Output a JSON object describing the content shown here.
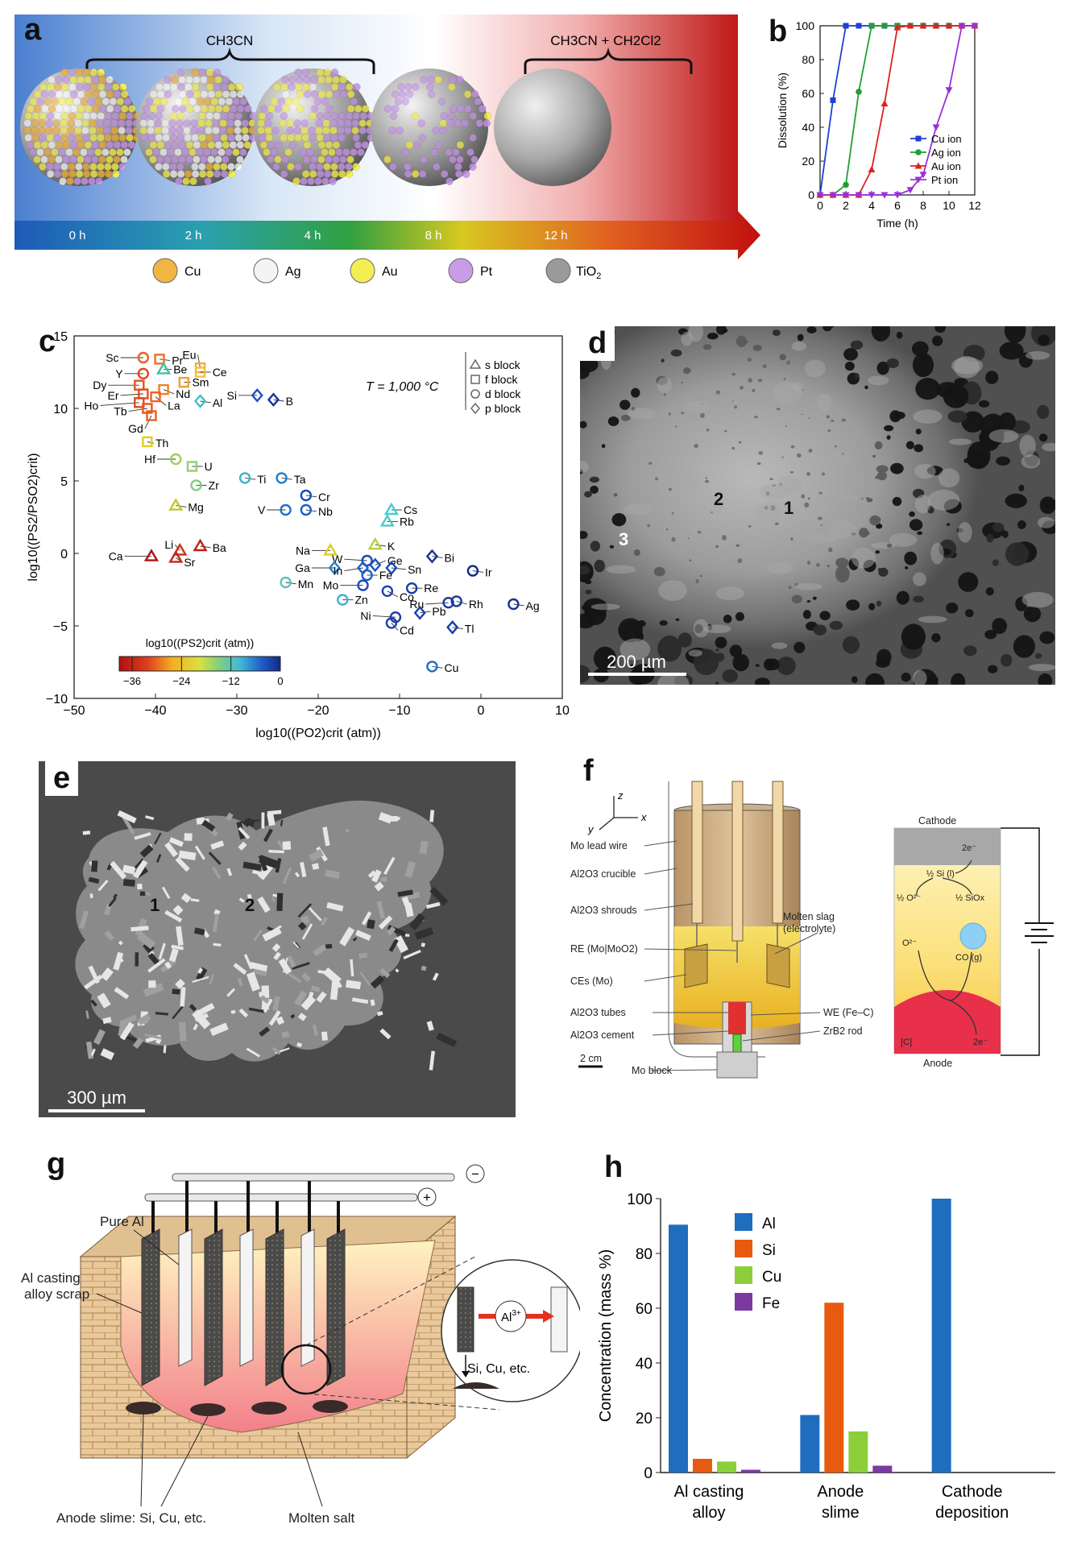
{
  "panels": {
    "a": {
      "label": "a",
      "solvent_left": "CH3CN",
      "solvent_right": "CH3CN + CH2Cl2",
      "times": [
        "0 h",
        "2 h",
        "4 h",
        "8 h",
        "12 h"
      ],
      "legend": [
        {
          "name": "Cu",
          "color": "#f2b443"
        },
        {
          "name": "Ag",
          "color": "#f4f4f4"
        },
        {
          "name": "Au",
          "color": "#f4ee55"
        },
        {
          "name": "Pt",
          "color": "#c99ce8"
        },
        {
          "name": "TiO2",
          "color": "#9a9a9a"
        }
      ]
    },
    "b": {
      "label": "b"
    },
    "c": {
      "label": "c",
      "temperature": "T = 1,000 °C",
      "legend": [
        "s block",
        "f block",
        "d block",
        "p block"
      ],
      "colorbar_title": "log10((PS2)crit (atm))",
      "colorbar_ticks": [
        "−36",
        "−24",
        "−12",
        "0"
      ]
    },
    "d": {
      "label": "d",
      "regions": [
        "1",
        "2",
        "3"
      ],
      "scalebar": "200 µm"
    },
    "e": {
      "label": "e",
      "regions": [
        "1",
        "2"
      ],
      "scalebar": "300 µm"
    },
    "f": {
      "label": "f",
      "axes": [
        "z",
        "x",
        "y"
      ],
      "callouts_left": [
        "Mo lead wire",
        "Al2O3 crucible",
        "Al2O3 shrouds",
        "RE (Mo|MoO2)",
        "CEs (Mo)",
        "Al2O3 tubes",
        "Al2O3 cement"
      ],
      "callouts_right": [
        "Molten slag",
        "(electrolyte)",
        "WE (Fe–C)",
        "ZrB2 rod"
      ],
      "bottom": [
        "2 cm",
        "Mo block"
      ],
      "schematic": {
        "cathode": "Cathode",
        "anode": "Anode",
        "e_top": "2e⁻",
        "si": "½ Si (l)",
        "o": "½ O²⁻",
        "siox": "½ SiOx",
        "o2": "O²⁻",
        "co": "CO (g)",
        "c": "[C]",
        "e_bottom": "2e⁻"
      }
    },
    "g": {
      "label": "g",
      "labels": [
        "Pure Al",
        "Al casting",
        "alloy scrap",
        "Anode slime: Si, Cu, etc.",
        "Molten salt",
        "Si, Cu, etc."
      ],
      "ion": "Al",
      "ion_charge": "3+",
      "minus": "−",
      "plus": "+"
    },
    "h": {
      "label": "h"
    }
  },
  "chart_data": [
    {
      "id": "b",
      "type": "line",
      "xlabel": "Time (h)",
      "ylabel": "Dissolution (%)",
      "xlim": [
        0,
        12
      ],
      "ylim": [
        0,
        100
      ],
      "xticks": [
        0,
        2,
        4,
        6,
        8,
        10,
        12
      ],
      "yticks": [
        0,
        20,
        40,
        60,
        80,
        100
      ],
      "legend_position": "lower-right",
      "series": [
        {
          "name": "Cu ion",
          "color": "#1f3fd6",
          "marker": "square",
          "points": [
            [
              0,
              0
            ],
            [
              1,
              56
            ],
            [
              2,
              100
            ],
            [
              3,
              100
            ],
            [
              4,
              100
            ],
            [
              5,
              100
            ],
            [
              6,
              100
            ],
            [
              7,
              100
            ],
            [
              8,
              100
            ],
            [
              9,
              100
            ],
            [
              10,
              100
            ],
            [
              11,
              100
            ],
            [
              12,
              100
            ]
          ]
        },
        {
          "name": "Ag ion",
          "color": "#20a030",
          "marker": "circle",
          "points": [
            [
              0,
              0
            ],
            [
              1,
              0
            ],
            [
              2,
              6
            ],
            [
              3,
              61
            ],
            [
              4,
              100
            ],
            [
              5,
              100
            ],
            [
              6,
              100
            ],
            [
              7,
              100
            ],
            [
              8,
              100
            ],
            [
              9,
              100
            ],
            [
              10,
              100
            ],
            [
              11,
              100
            ],
            [
              12,
              100
            ]
          ]
        },
        {
          "name": "Au ion",
          "color": "#e02020",
          "marker": "triangle",
          "points": [
            [
              0,
              0
            ],
            [
              1,
              0
            ],
            [
              2,
              0
            ],
            [
              3,
              0
            ],
            [
              4,
              15
            ],
            [
              5,
              54
            ],
            [
              6,
              99
            ],
            [
              7,
              100
            ],
            [
              8,
              100
            ],
            [
              9,
              100
            ],
            [
              10,
              100
            ],
            [
              11,
              100
            ],
            [
              12,
              100
            ]
          ]
        },
        {
          "name": "Pt ion",
          "color": "#9a30d8",
          "marker": "triangle-down",
          "points": [
            [
              0,
              0
            ],
            [
              1,
              0
            ],
            [
              2,
              0
            ],
            [
              3,
              0
            ],
            [
              4,
              0
            ],
            [
              5,
              0
            ],
            [
              6,
              0
            ],
            [
              7,
              3
            ],
            [
              8,
              12
            ],
            [
              9,
              40
            ],
            [
              10,
              62
            ],
            [
              11,
              100
            ],
            [
              12,
              100
            ]
          ]
        }
      ]
    },
    {
      "id": "c",
      "type": "scatter",
      "xlabel": "log10((PO2)crit (atm))",
      "ylabel": "log10((PS2/PSO2)crit)",
      "xlim": [
        -50,
        10
      ],
      "ylim": [
        -10,
        15
      ],
      "xticks": [
        -50,
        -40,
        -30,
        -20,
        -10,
        0,
        10
      ],
      "yticks": [
        -10,
        -5,
        0,
        5,
        10,
        15
      ],
      "points": [
        {
          "label": "Sc",
          "x": -41.5,
          "y": 13.5,
          "block": "d",
          "color": "#e8602a",
          "lx": -44.5,
          "ly": 13.5
        },
        {
          "label": "Pr",
          "x": -39.5,
          "y": 13.4,
          "block": "f",
          "color": "#f07020",
          "lx": -38.0,
          "ly": 13.3
        },
        {
          "label": "Eu",
          "x": -34.5,
          "y": 12.8,
          "block": "f",
          "color": "#f4b030",
          "lx": -35.0,
          "ly": 13.7
        },
        {
          "label": "Y",
          "x": -41.5,
          "y": 12.4,
          "block": "d",
          "color": "#e84020",
          "lx": -44.0,
          "ly": 12.4
        },
        {
          "label": "Be",
          "x": -39.0,
          "y": 12.7,
          "block": "s",
          "color": "#40c0a0",
          "lx": -37.8,
          "ly": 12.7
        },
        {
          "label": "Ce",
          "x": -34.5,
          "y": 12.5,
          "block": "f",
          "color": "#f4c040",
          "lx": -33.0,
          "ly": 12.5
        },
        {
          "label": "Sm",
          "x": -36.5,
          "y": 11.8,
          "block": "f",
          "color": "#f0a030",
          "lx": -35.5,
          "ly": 11.8
        },
        {
          "label": "Dy",
          "x": -42.0,
          "y": 11.6,
          "block": "f",
          "color": "#e85020",
          "lx": -46.0,
          "ly": 11.6
        },
        {
          "label": "Nd",
          "x": -39.0,
          "y": 11.3,
          "block": "f",
          "color": "#f08020",
          "lx": -37.5,
          "ly": 11.0
        },
        {
          "label": "Er",
          "x": -41.5,
          "y": 11.0,
          "block": "f",
          "color": "#e05020",
          "lx": -44.5,
          "ly": 10.9
        },
        {
          "label": "La",
          "x": -40.0,
          "y": 10.8,
          "block": "f",
          "color": "#f06020",
          "lx": -38.5,
          "ly": 10.2
        },
        {
          "label": "Ho",
          "x": -42.0,
          "y": 10.4,
          "block": "f",
          "color": "#e04820",
          "lx": -47.0,
          "ly": 10.2
        },
        {
          "label": "Tb",
          "x": -41.0,
          "y": 10.0,
          "block": "f",
          "color": "#e85520",
          "lx": -43.5,
          "ly": 9.8
        },
        {
          "label": "Gd",
          "x": -40.5,
          "y": 9.5,
          "block": "f",
          "color": "#e86020",
          "lx": -41.5,
          "ly": 8.6
        },
        {
          "label": "Al",
          "x": -34.5,
          "y": 10.5,
          "block": "p",
          "color": "#40c0c8",
          "lx": -33.0,
          "ly": 10.4
        },
        {
          "label": "Si",
          "x": -27.5,
          "y": 10.9,
          "block": "p",
          "color": "#2050c0",
          "lx": -30.0,
          "ly": 10.9
        },
        {
          "label": "B",
          "x": -25.5,
          "y": 10.6,
          "block": "p",
          "color": "#1a30a0",
          "lx": -24.0,
          "ly": 10.5
        },
        {
          "label": "Th",
          "x": -41.0,
          "y": 7.7,
          "block": "f",
          "color": "#e0d020",
          "lx": -40.0,
          "ly": 7.6
        },
        {
          "label": "Hf",
          "x": -37.5,
          "y": 6.5,
          "block": "d",
          "color": "#a0d060",
          "lx": -40.0,
          "ly": 6.5
        },
        {
          "label": "U",
          "x": -35.5,
          "y": 6.0,
          "block": "f",
          "color": "#90d070",
          "lx": -34.0,
          "ly": 6.0
        },
        {
          "label": "Zr",
          "x": -35.0,
          "y": 4.7,
          "block": "d",
          "color": "#80d080",
          "lx": -33.5,
          "ly": 4.7
        },
        {
          "label": "Ti",
          "x": -29.0,
          "y": 5.2,
          "block": "d",
          "color": "#40b0d0",
          "lx": -27.5,
          "ly": 5.1
        },
        {
          "label": "Ta",
          "x": -24.5,
          "y": 5.2,
          "block": "d",
          "color": "#2080d0",
          "lx": -23.0,
          "ly": 5.1
        },
        {
          "label": "Mg",
          "x": -37.5,
          "y": 3.3,
          "block": "s",
          "color": "#c0c830",
          "lx": -36.0,
          "ly": 3.2
        },
        {
          "label": "Cr",
          "x": -21.5,
          "y": 4.0,
          "block": "d",
          "color": "#1050c0",
          "lx": -20.0,
          "ly": 3.9
        },
        {
          "label": "V",
          "x": -24.0,
          "y": 3.0,
          "block": "d",
          "color": "#2070d0",
          "lx": -26.5,
          "ly": 3.0
        },
        {
          "label": "Nb",
          "x": -21.5,
          "y": 3.0,
          "block": "d",
          "color": "#1a60c8",
          "lx": -20.0,
          "ly": 2.9
        },
        {
          "label": "Cs",
          "x": -11.0,
          "y": 3.0,
          "block": "s",
          "color": "#40d0d0",
          "lx": -9.5,
          "ly": 3.0
        },
        {
          "label": "Rb",
          "x": -11.5,
          "y": 2.2,
          "block": "s",
          "color": "#50c8c8",
          "lx": -10.0,
          "ly": 2.2
        },
        {
          "label": "Li",
          "x": -37.0,
          "y": 0.2,
          "block": "s",
          "color": "#c83010",
          "lx": -37.8,
          "ly": 0.6
        },
        {
          "label": "Ba",
          "x": -34.5,
          "y": 0.5,
          "block": "s",
          "color": "#c02010",
          "lx": -33.0,
          "ly": 0.4
        },
        {
          "label": "Ca",
          "x": -40.5,
          "y": -0.2,
          "block": "s",
          "color": "#b01010",
          "lx": -44.0,
          "ly": -0.2
        },
        {
          "label": "Sr",
          "x": -37.5,
          "y": -0.3,
          "block": "s",
          "color": "#c02818",
          "lx": -36.5,
          "ly": -0.6
        },
        {
          "label": "Na",
          "x": -18.5,
          "y": 0.2,
          "block": "s",
          "color": "#d8d020",
          "lx": -21.0,
          "ly": 0.2
        },
        {
          "label": "K",
          "x": -13.0,
          "y": 0.6,
          "block": "s",
          "color": "#b8d040",
          "lx": -11.5,
          "ly": 0.5
        },
        {
          "label": "Bi",
          "x": -6.0,
          "y": -0.2,
          "block": "p",
          "color": "#1a3090",
          "lx": -4.5,
          "ly": -0.3
        },
        {
          "label": "W",
          "x": -14.0,
          "y": -0.5,
          "block": "d",
          "color": "#1a4ab8",
          "lx": -17.0,
          "ly": -0.4
        },
        {
          "label": "Ge",
          "x": -13.0,
          "y": -0.8,
          "block": "p",
          "color": "#1a50c0",
          "lx": -11.5,
          "ly": -0.5
        },
        {
          "label": "Ir",
          "x": -1.0,
          "y": -1.2,
          "block": "d",
          "color": "#102a88",
          "lx": 0.5,
          "ly": -1.3
        },
        {
          "label": "Ga",
          "x": -18.0,
          "y": -1.0,
          "block": "p",
          "color": "#2080d0",
          "lx": -21.0,
          "ly": -1.0
        },
        {
          "label": "In",
          "x": -14.5,
          "y": -1.0,
          "block": "p",
          "color": "#1a60c8",
          "lx": -17.0,
          "ly": -1.2
        },
        {
          "label": "Sn",
          "x": -11.0,
          "y": -1.0,
          "block": "p",
          "color": "#1a48b8",
          "lx": -9.0,
          "ly": -1.1
        },
        {
          "label": "Fe",
          "x": -14.0,
          "y": -1.5,
          "block": "d",
          "color": "#2060c8",
          "lx": -12.5,
          "ly": -1.5
        },
        {
          "label": "Mn",
          "x": -24.0,
          "y": -2.0,
          "block": "d",
          "color": "#60c0c0",
          "lx": -22.5,
          "ly": -2.1
        },
        {
          "label": "Mo",
          "x": -14.5,
          "y": -2.2,
          "block": "d",
          "color": "#1a48b8",
          "lx": -17.5,
          "ly": -2.2
        },
        {
          "label": "Re",
          "x": -8.5,
          "y": -2.4,
          "block": "d",
          "color": "#1a3ca8",
          "lx": -7.0,
          "ly": -2.4
        },
        {
          "label": "Co",
          "x": -11.5,
          "y": -2.6,
          "block": "d",
          "color": "#1a40b0",
          "lx": -10.0,
          "ly": -3.0
        },
        {
          "label": "Zn",
          "x": -17.0,
          "y": -3.2,
          "block": "d",
          "color": "#40b0d0",
          "lx": -15.5,
          "ly": -3.2
        },
        {
          "label": "Ru",
          "x": -4.0,
          "y": -3.4,
          "block": "d",
          "color": "#1a38a0",
          "lx": -7.0,
          "ly": -3.5
        },
        {
          "label": "Rh",
          "x": -3.0,
          "y": -3.3,
          "block": "d",
          "color": "#1a38a0",
          "lx": -1.5,
          "ly": -3.5
        },
        {
          "label": "Ag",
          "x": 4.0,
          "y": -3.5,
          "block": "d",
          "color": "#1a3090",
          "lx": 5.5,
          "ly": -3.6
        },
        {
          "label": "Pb",
          "x": -7.5,
          "y": -4.1,
          "block": "p",
          "color": "#1a40b0",
          "lx": -6.0,
          "ly": -4.0
        },
        {
          "label": "Ni",
          "x": -10.5,
          "y": -4.4,
          "block": "d",
          "color": "#1a3ca8",
          "lx": -13.5,
          "ly": -4.3
        },
        {
          "label": "Tl",
          "x": -3.5,
          "y": -5.1,
          "block": "p",
          "color": "#1a3ca8",
          "lx": -2.0,
          "ly": -5.2
        },
        {
          "label": "Cd",
          "x": -11.0,
          "y": -4.8,
          "block": "d",
          "color": "#1a40b0",
          "lx": -10.0,
          "ly": -5.3
        },
        {
          "label": "Cu",
          "x": -6.0,
          "y": -7.8,
          "block": "d",
          "color": "#2070c8",
          "lx": -4.5,
          "ly": -7.9
        }
      ]
    },
    {
      "id": "h",
      "type": "bar",
      "categories": [
        "Al casting alloy",
        "Anode slime",
        "Cathode deposition"
      ],
      "category_lines": [
        [
          "Al casting",
          "alloy"
        ],
        [
          "Anode",
          "slime"
        ],
        [
          "Cathode",
          "deposition"
        ]
      ],
      "ylabel": "Concentration (mass %)",
      "ylim": [
        0,
        100
      ],
      "yticks": [
        0,
        20,
        40,
        60,
        80,
        100
      ],
      "legend_position": "top-left",
      "series": [
        {
          "name": "Al",
          "color": "#1f6dbf",
          "values": [
            90.5,
            21,
            100
          ]
        },
        {
          "name": "Si",
          "color": "#e85a10",
          "values": [
            5,
            62,
            0
          ]
        },
        {
          "name": "Cu",
          "color": "#8ccf3a",
          "values": [
            4,
            15,
            0
          ]
        },
        {
          "name": "Fe",
          "color": "#7a3aa0",
          "values": [
            1,
            2.5,
            0
          ]
        }
      ]
    }
  ]
}
